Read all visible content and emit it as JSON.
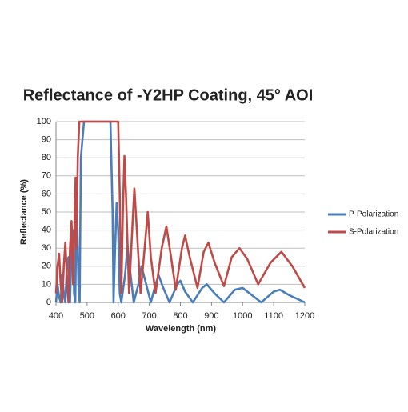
{
  "chart_data": {
    "type": "line",
    "title": "Reflectance of -Y2HP Coating, 45° AOI",
    "x_label": "Wavelength (nm)",
    "y_label": "Reflectance (%)",
    "xlim": [
      400,
      1200
    ],
    "xticks": [
      400,
      500,
      600,
      700,
      800,
      900,
      1000,
      1100,
      1200
    ],
    "ylim": [
      0,
      100
    ],
    "yticks": [
      0,
      10,
      20,
      30,
      40,
      50,
      60,
      70,
      80,
      90,
      100
    ],
    "grid": true,
    "legend": "right",
    "series": [
      {
        "name": "P-Polarization",
        "color": "#4a7ebb",
        "x": [
          400,
          405,
          410,
          415,
          420,
          425,
          430,
          435,
          440,
          445,
          450,
          455,
          458,
          462,
          465,
          468,
          472,
          476,
          480,
          490,
          575,
          582,
          585,
          590,
          595,
          600,
          605,
          610,
          622,
          630,
          640,
          650,
          665,
          675,
          690,
          705,
          720,
          730,
          745,
          765,
          790,
          800,
          815,
          840,
          870,
          885,
          910,
          940,
          975,
          1000,
          1030,
          1060,
          1100,
          1120,
          1150,
          1200
        ],
        "values": [
          0,
          10,
          3,
          0,
          15,
          5,
          0,
          20,
          25,
          0,
          30,
          40,
          5,
          0,
          40,
          49,
          10,
          0,
          80,
          100,
          100,
          50,
          0,
          30,
          55,
          40,
          5,
          0,
          15,
          31,
          15,
          0,
          10,
          20,
          10,
          0,
          10,
          15,
          8,
          0,
          10,
          12,
          6,
          0,
          8,
          10,
          5,
          0,
          7,
          8,
          4,
          0,
          6,
          7,
          4,
          0
        ]
      },
      {
        "name": "S-Polarization",
        "color": "#be4b48",
        "x": [
          400,
          405,
          410,
          415,
          420,
          425,
          430,
          435,
          440,
          445,
          450,
          455,
          460,
          463,
          466,
          470,
          475,
          600,
          605,
          610,
          615,
          620,
          625,
          635,
          645,
          652,
          660,
          672,
          685,
          695,
          705,
          720,
          740,
          755,
          770,
          785,
          805,
          815,
          830,
          855,
          875,
          890,
          910,
          940,
          965,
          990,
          1015,
          1050,
          1090,
          1125,
          1160,
          1200
        ],
        "values": [
          5,
          20,
          27,
          10,
          0,
          20,
          33,
          15,
          0,
          30,
          45,
          10,
          45,
          69,
          30,
          80,
          100,
          100,
          60,
          5,
          50,
          81,
          60,
          5,
          40,
          63,
          40,
          5,
          30,
          50,
          25,
          5,
          30,
          42,
          25,
          7,
          30,
          37,
          25,
          8,
          28,
          33,
          22,
          9,
          25,
          30,
          24,
          10,
          22,
          28,
          20,
          8
        ]
      }
    ]
  }
}
